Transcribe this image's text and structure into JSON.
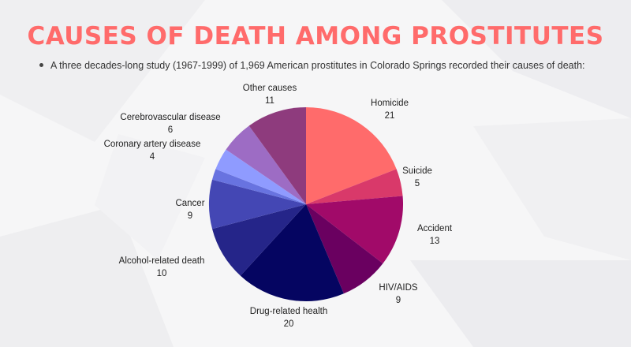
{
  "page": {
    "title": "CAUSES OF DEATH AMONG PROSTITUTES",
    "subtitle": "A three decades-long study (1967-1999) of 1,969 American prostitutes in Colorado Springs recorded their causes of death:"
  },
  "chart_data": {
    "type": "pie",
    "start_angle_deg": 0,
    "direction": "clockwise",
    "legend": "none",
    "slices": [
      {
        "label": "Homicide",
        "value": 21,
        "color": "#ff6b6b"
      },
      {
        "label": "Suicide",
        "value": 5,
        "color": "#d9396a"
      },
      {
        "label": "Accident",
        "value": 13,
        "color": "#a10a69"
      },
      {
        "label": "HIV/AIDS",
        "value": 9,
        "color": "#6a0060"
      },
      {
        "label": "Drug-related health",
        "value": 20,
        "color": "#050561"
      },
      {
        "label": "Alcohol-related death",
        "value": 10,
        "color": "#252589"
      },
      {
        "label": "Cancer",
        "value": 9,
        "color": "#4447b4"
      },
      {
        "label": "",
        "value": 2,
        "color": "#6873e0"
      },
      {
        "label": "Coronary artery disease",
        "value": 4,
        "color": "#8f9bff"
      },
      {
        "label": "Cerebrovascular disease",
        "value": 6,
        "color": "#9d6cc4"
      },
      {
        "label": "Other causes",
        "value": 11,
        "color": "#8e3b7d"
      }
    ]
  }
}
